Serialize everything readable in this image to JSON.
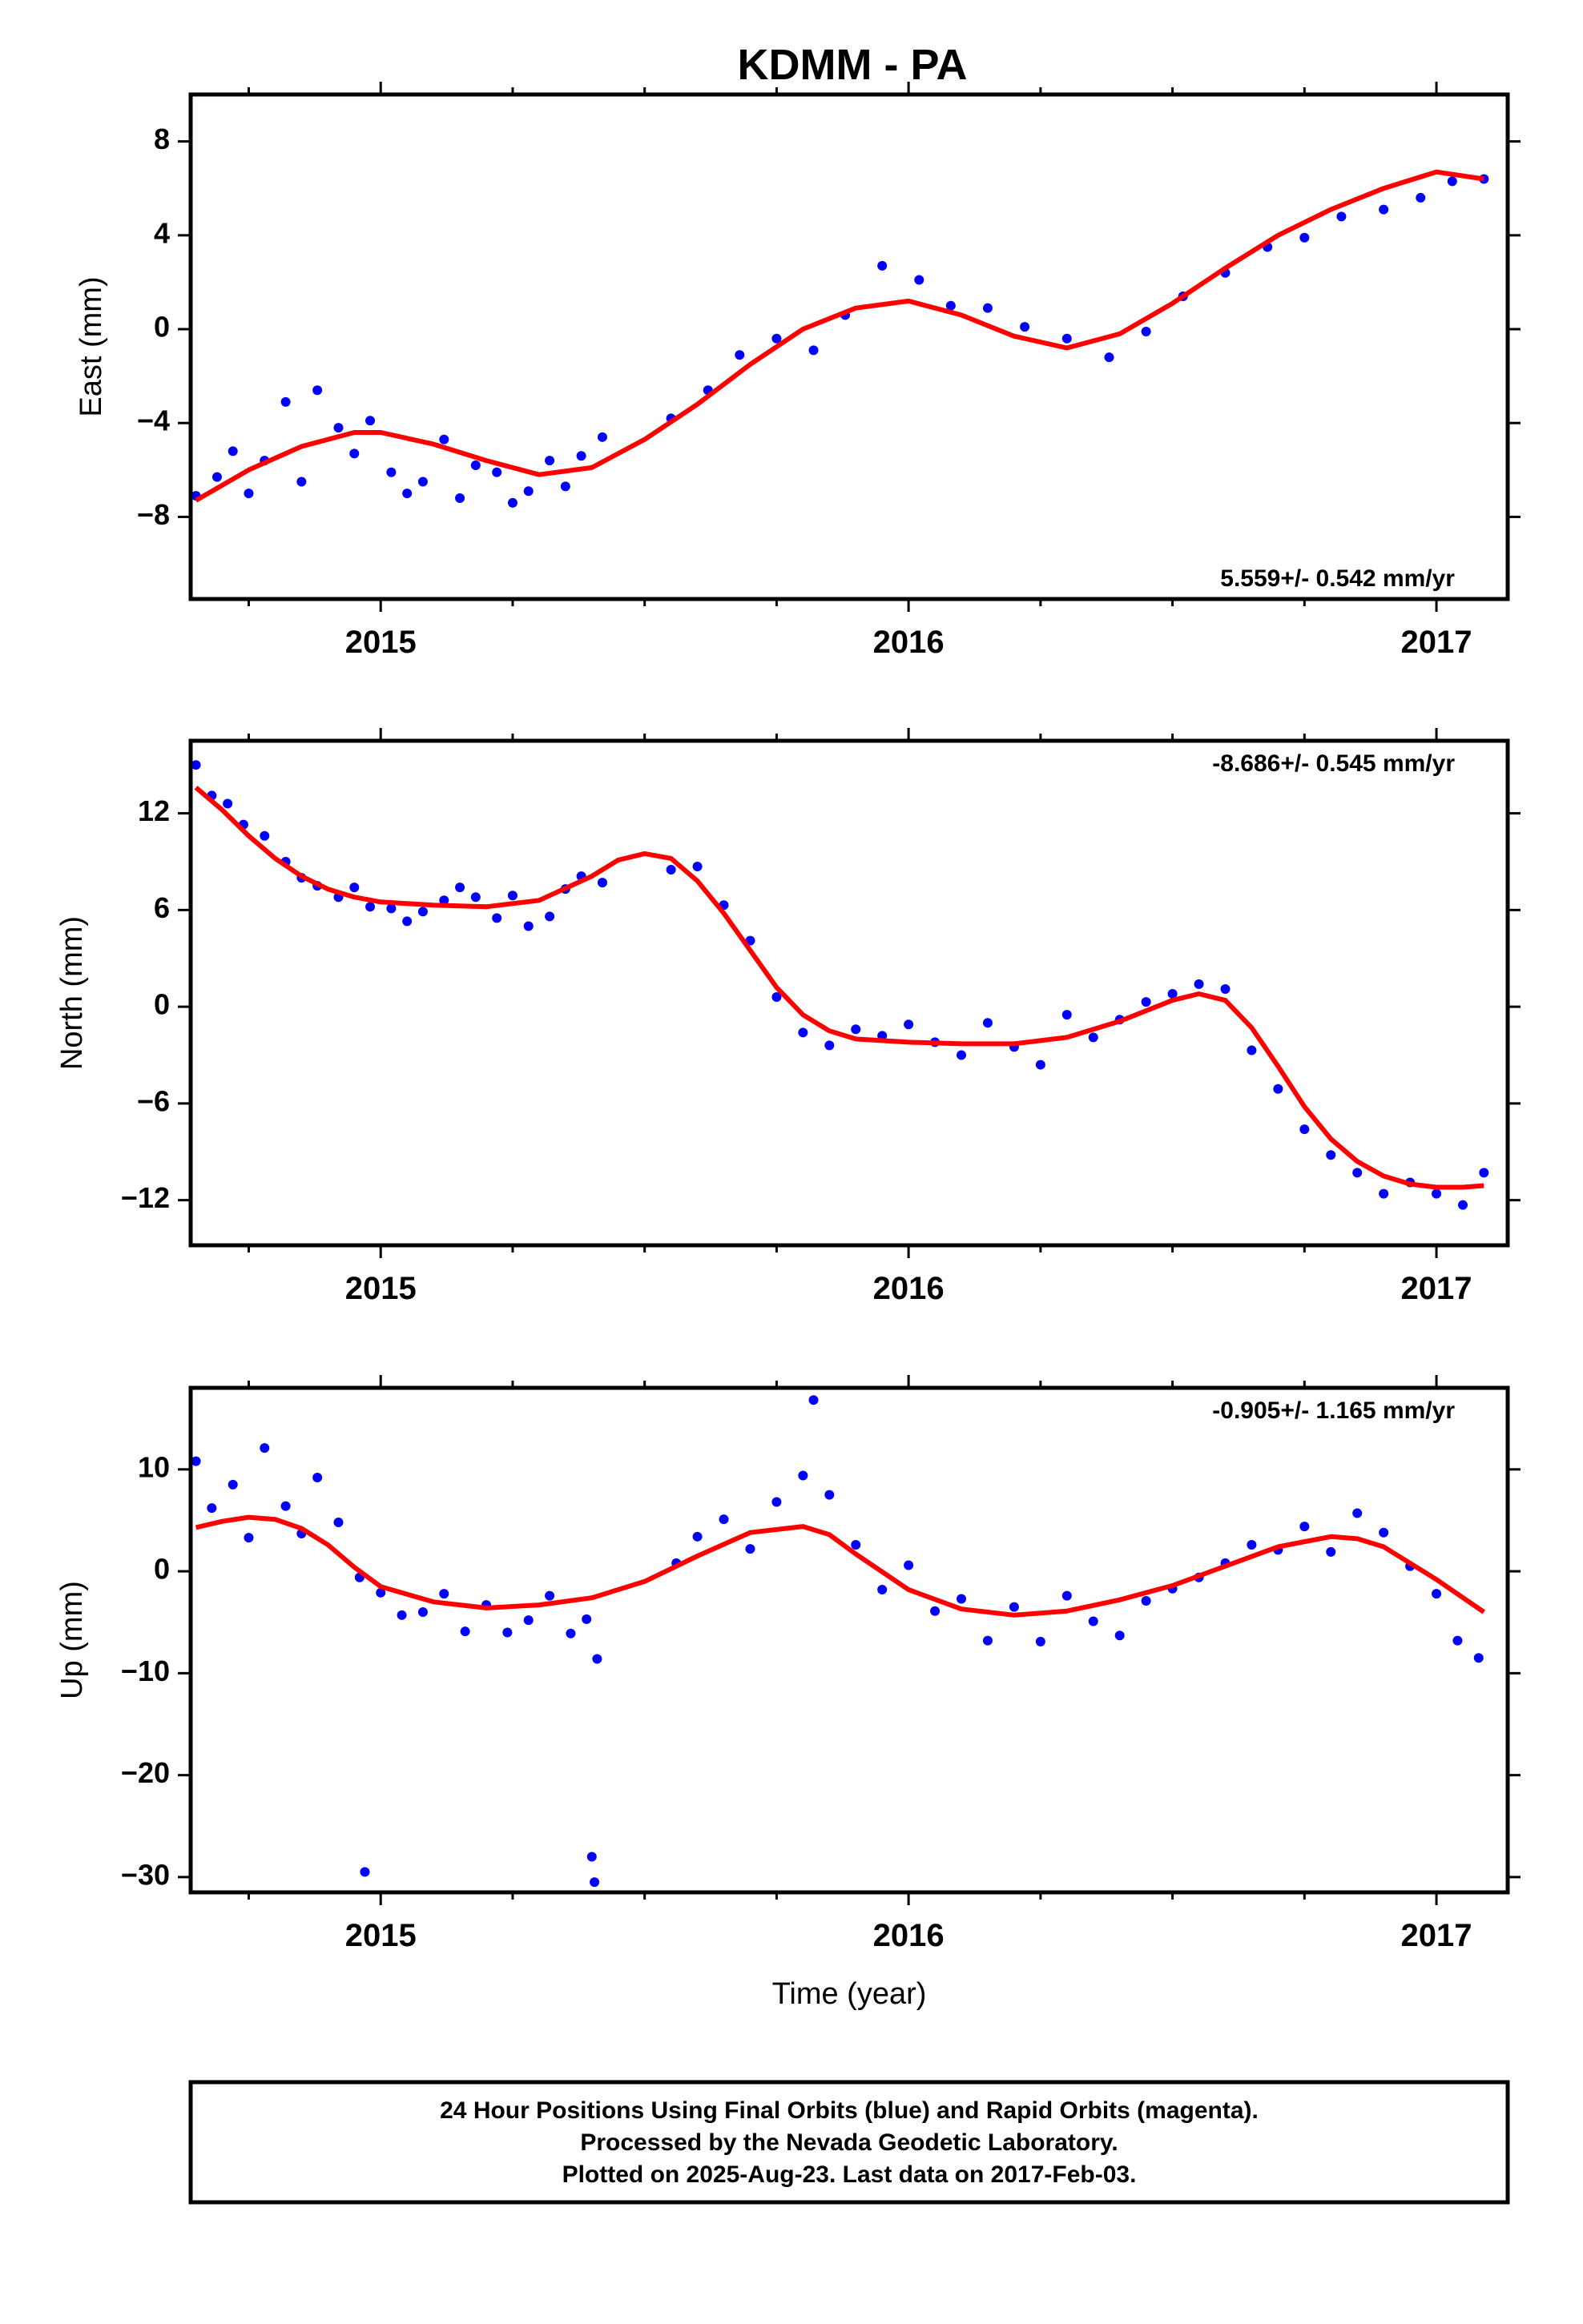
{
  "chart_data": [
    {
      "type": "scatter",
      "title": "KDMM - PA",
      "ylabel": "East (mm)",
      "xlabel": "",
      "xlim": [
        2014.64,
        2017.135
      ],
      "ylim": [
        -11.5,
        10
      ],
      "xticks": [
        "2015",
        "2016",
        "2017"
      ],
      "yticks": [
        "8",
        "4",
        "0",
        "−4",
        "−8"
      ],
      "annotation": "5.559+/- 0.542 mm/yr",
      "annotation_pos": "bottom-right",
      "series": [
        {
          "color": "#0000ff",
          "x": [
            2014.65,
            2014.69,
            2014.72,
            2014.75,
            2014.78,
            2014.82,
            2014.85,
            2014.88,
            2014.92,
            2014.95,
            2014.98,
            2015.02,
            2015.05,
            2015.08,
            2015.12,
            2015.15,
            2015.18,
            2015.22,
            2015.25,
            2015.28,
            2015.32,
            2015.35,
            2015.38,
            2015.42,
            2015.55,
            2015.62,
            2015.68,
            2015.75,
            2015.82,
            2015.88,
            2015.95,
            2016.02,
            2016.08,
            2016.15,
            2016.22,
            2016.3,
            2016.38,
            2016.45,
            2016.52,
            2016.6,
            2016.68,
            2016.75,
            2016.82,
            2016.9,
            2016.97,
            2017.03,
            2017.09
          ],
          "y": [
            -7.1,
            -6.3,
            -5.2,
            -7.0,
            -5.6,
            -3.1,
            -6.5,
            -2.6,
            -4.2,
            -5.3,
            -3.9,
            -6.1,
            -7.0,
            -6.5,
            -4.7,
            -7.2,
            -5.8,
            -6.1,
            -7.4,
            -6.9,
            -5.6,
            -6.7,
            -5.4,
            -4.6,
            -3.8,
            -2.6,
            -1.1,
            -0.4,
            -0.9,
            0.6,
            2.7,
            2.1,
            1.0,
            0.9,
            0.1,
            -0.4,
            -1.2,
            -0.1,
            1.4,
            2.4,
            3.5,
            3.9,
            4.8,
            5.1,
            5.6,
            6.3,
            6.4
          ]
        },
        {
          "color": "#ff0000",
          "x": [
            2014.65,
            2014.75,
            2014.85,
            2014.95,
            2015.0,
            2015.1,
            2015.2,
            2015.3,
            2015.4,
            2015.5,
            2015.6,
            2015.7,
            2015.8,
            2015.9,
            2016.0,
            2016.1,
            2016.2,
            2016.3,
            2016.4,
            2016.5,
            2016.6,
            2016.7,
            2016.8,
            2016.9,
            2017.0,
            2017.09
          ],
          "y": [
            -7.3,
            -6.0,
            -5.0,
            -4.4,
            -4.4,
            -4.9,
            -5.6,
            -6.2,
            -5.9,
            -4.7,
            -3.2,
            -1.5,
            0.0,
            0.9,
            1.2,
            0.6,
            -0.3,
            -0.8,
            -0.2,
            1.1,
            2.6,
            4.0,
            5.1,
            6.0,
            6.7,
            6.4
          ]
        }
      ]
    },
    {
      "type": "scatter",
      "title": "",
      "ylabel": "North (mm)",
      "xlabel": "",
      "xlim": [
        2014.64,
        2017.135
      ],
      "ylim": [
        -14.8,
        16.5
      ],
      "xticks": [
        "2015",
        "2016",
        "2017"
      ],
      "yticks": [
        "12",
        "6",
        "0",
        "−6",
        "−12"
      ],
      "annotation": "-8.686+/- 0.545 mm/yr",
      "annotation_pos": "top-right",
      "series": [
        {
          "color": "#0000ff",
          "x": [
            2014.65,
            2014.68,
            2014.71,
            2014.74,
            2014.78,
            2014.82,
            2014.85,
            2014.88,
            2014.92,
            2014.95,
            2014.98,
            2015.02,
            2015.05,
            2015.08,
            2015.12,
            2015.15,
            2015.18,
            2015.22,
            2015.25,
            2015.28,
            2015.32,
            2015.35,
            2015.38,
            2015.42,
            2015.55,
            2015.6,
            2015.65,
            2015.7,
            2015.75,
            2015.8,
            2015.85,
            2015.9,
            2015.95,
            2016.0,
            2016.05,
            2016.1,
            2016.15,
            2016.2,
            2016.25,
            2016.3,
            2016.35,
            2016.4,
            2016.45,
            2016.5,
            2016.55,
            2016.6,
            2016.65,
            2016.7,
            2016.75,
            2016.8,
            2016.85,
            2016.9,
            2016.95,
            2017.0,
            2017.05,
            2017.09
          ],
          "y": [
            15.0,
            13.1,
            12.6,
            11.3,
            10.6,
            9.0,
            8.0,
            7.5,
            6.8,
            7.4,
            6.2,
            6.1,
            5.3,
            5.9,
            6.6,
            7.4,
            6.8,
            5.5,
            6.9,
            5.0,
            5.6,
            7.3,
            8.1,
            7.7,
            8.5,
            8.7,
            6.3,
            4.1,
            0.6,
            -1.6,
            -2.4,
            -1.4,
            -1.8,
            -1.1,
            -2.2,
            -3.0,
            -1.0,
            -2.5,
            -3.6,
            -0.5,
            -1.9,
            -0.8,
            0.3,
            0.8,
            1.4,
            1.1,
            -2.7,
            -5.1,
            -7.6,
            -9.2,
            -10.3,
            -11.6,
            -10.9,
            -11.6,
            -12.3,
            -10.3
          ]
        },
        {
          "color": "#ff0000",
          "x": [
            2014.65,
            2014.7,
            2014.75,
            2014.8,
            2014.85,
            2014.9,
            2014.95,
            2015.0,
            2015.1,
            2015.2,
            2015.3,
            2015.4,
            2015.45,
            2015.5,
            2015.55,
            2015.6,
            2015.65,
            2015.7,
            2015.75,
            2015.8,
            2015.85,
            2015.9,
            2016.0,
            2016.1,
            2016.2,
            2016.3,
            2016.4,
            2016.5,
            2016.55,
            2016.6,
            2016.65,
            2016.7,
            2016.75,
            2016.8,
            2016.85,
            2016.9,
            2016.95,
            2017.0,
            2017.05,
            2017.09
          ],
          "y": [
            13.6,
            12.2,
            10.6,
            9.2,
            8.1,
            7.3,
            6.8,
            6.5,
            6.3,
            6.2,
            6.6,
            8.1,
            9.1,
            9.5,
            9.2,
            7.8,
            5.8,
            3.5,
            1.2,
            -0.5,
            -1.5,
            -2.0,
            -2.2,
            -2.3,
            -2.3,
            -1.9,
            -0.9,
            0.4,
            0.8,
            0.4,
            -1.3,
            -3.7,
            -6.2,
            -8.2,
            -9.6,
            -10.5,
            -11.0,
            -11.2,
            -11.2,
            -11.1
          ]
        }
      ]
    },
    {
      "type": "scatter",
      "title": "",
      "ylabel": "Up (mm)",
      "xlabel": "Time (year)",
      "xlim": [
        2014.64,
        2017.135
      ],
      "ylim": [
        -31.5,
        18
      ],
      "xticks": [
        "2015",
        "2016",
        "2017"
      ],
      "yticks": [
        "10",
        "0",
        "−10",
        "−20",
        "−30"
      ],
      "annotation": "-0.905+/- 1.165 mm/yr",
      "annotation_pos": "top-right",
      "series": [
        {
          "color": "#0000ff",
          "x": [
            2014.65,
            2014.68,
            2014.72,
            2014.75,
            2014.78,
            2014.82,
            2014.85,
            2014.88,
            2014.92,
            2014.96,
            2015.0,
            2015.04,
            2015.08,
            2015.12,
            2015.16,
            2015.2,
            2015.24,
            2015.28,
            2015.32,
            2015.36,
            2015.39,
            2015.41,
            2015.56,
            2015.6,
            2015.65,
            2015.7,
            2015.75,
            2015.8,
            2015.82,
            2015.85,
            2015.9,
            2015.95,
            2016.0,
            2016.05,
            2016.1,
            2016.15,
            2016.2,
            2016.25,
            2016.3,
            2016.35,
            2016.4,
            2016.45,
            2016.5,
            2016.55,
            2016.6,
            2016.65,
            2016.7,
            2016.75,
            2016.8,
            2016.85,
            2016.9,
            2016.95,
            2017.0,
            2017.04,
            2017.08,
            2014.97,
            2015.4,
            2015.405
          ],
          "y": [
            10.8,
            6.2,
            8.5,
            3.3,
            12.1,
            6.4,
            3.7,
            9.2,
            4.8,
            -0.6,
            -2.1,
            -4.3,
            -4.0,
            -2.2,
            -5.9,
            -3.3,
            -6.0,
            -4.8,
            -2.4,
            -6.1,
            -4.7,
            -8.6,
            0.8,
            3.4,
            5.1,
            2.2,
            6.8,
            9.4,
            16.8,
            7.5,
            2.6,
            -1.8,
            0.6,
            -3.9,
            -2.7,
            -6.8,
            -3.5,
            -6.9,
            -2.4,
            -4.9,
            -6.3,
            -2.9,
            -1.7,
            -0.6,
            0.8,
            2.6,
            2.1,
            4.4,
            1.9,
            5.7,
            3.8,
            0.5,
            -2.2,
            -6.8,
            -8.5,
            -29.5,
            -28.0,
            -30.5
          ]
        },
        {
          "color": "#ff0000",
          "x": [
            2014.65,
            2014.7,
            2014.75,
            2014.8,
            2014.85,
            2014.9,
            2014.95,
            2015.0,
            2015.1,
            2015.2,
            2015.3,
            2015.4,
            2015.5,
            2015.6,
            2015.7,
            2015.8,
            2015.85,
            2015.9,
            2016.0,
            2016.1,
            2016.2,
            2016.3,
            2016.4,
            2016.5,
            2016.6,
            2016.7,
            2016.8,
            2016.85,
            2016.9,
            2017.0,
            2017.09
          ],
          "y": [
            4.3,
            4.9,
            5.3,
            5.1,
            4.2,
            2.6,
            0.4,
            -1.5,
            -3.0,
            -3.6,
            -3.3,
            -2.6,
            -1.0,
            1.5,
            3.8,
            4.4,
            3.6,
            1.7,
            -1.8,
            -3.7,
            -4.3,
            -3.9,
            -2.8,
            -1.4,
            0.5,
            2.4,
            3.4,
            3.2,
            2.4,
            -0.8,
            -4.0
          ]
        }
      ]
    }
  ],
  "footer": {
    "line1": "24 Hour Positions Using Final Orbits (blue) and Rapid Orbits (magenta).",
    "line2": "Processed by the Nevada Geodetic Laboratory.",
    "line3": "Plotted on 2025-Aug-23. Last data on 2017-Feb-03."
  }
}
